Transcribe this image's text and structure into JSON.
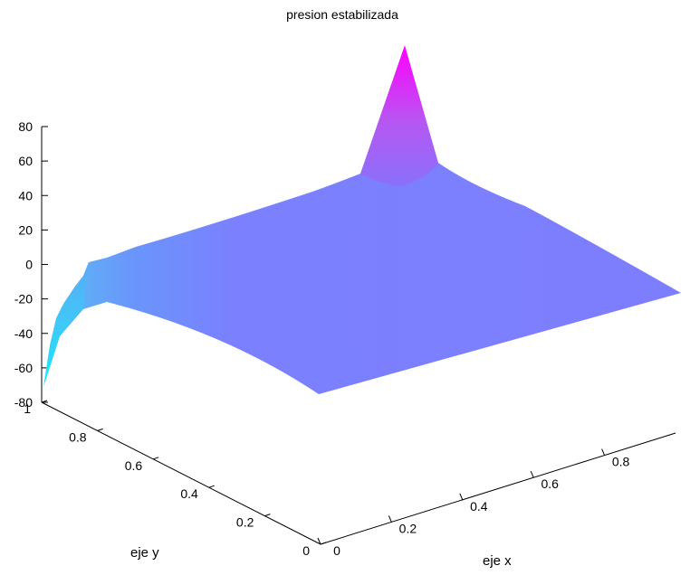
{
  "chart_data": {
    "type": "surface",
    "title": "presion estabilizada",
    "xlabel": "eje x",
    "ylabel": "eje y",
    "zlabel": "",
    "xlim": [
      0,
      1
    ],
    "ylim": [
      0,
      1
    ],
    "zlim": [
      -80,
      80
    ],
    "x_ticks": [
      0,
      0.2,
      0.4,
      0.6,
      0.8
    ],
    "x_tick_labels": [
      "0",
      "0.2",
      "0.4",
      "0.6",
      "0.8"
    ],
    "y_ticks": [
      0,
      0.2,
      0.4,
      0.6,
      0.8,
      1
    ],
    "y_tick_labels": [
      "0",
      "0.2",
      "0.4",
      "0.6",
      "0.8",
      "1"
    ],
    "z_ticks": [
      -80,
      -60,
      -40,
      -20,
      0,
      20,
      40,
      60,
      80
    ],
    "z_tick_labels": [
      "-80",
      "-60",
      "-40",
      "-20",
      "0",
      "20",
      "40",
      "60",
      "80"
    ],
    "grid": false,
    "colormap": "cool",
    "surface_samples": [
      {
        "x": 0,
        "y": 0,
        "z": -5
      },
      {
        "x": 1,
        "y": 0,
        "z": -5
      },
      {
        "x": 1,
        "y": 1,
        "z": 65
      },
      {
        "x": 0.95,
        "y": 1,
        "z": 28
      },
      {
        "x": 1,
        "y": 0.95,
        "z": 30
      },
      {
        "x": 0,
        "y": 1,
        "z": -75
      },
      {
        "x": 0.05,
        "y": 1,
        "z": -50
      },
      {
        "x": 0.1,
        "y": 1,
        "z": -30
      },
      {
        "x": 0.15,
        "y": 1,
        "z": -5
      },
      {
        "x": 0,
        "y": 0.95,
        "z": -22
      },
      {
        "x": 0,
        "y": 0.9,
        "z": -15
      }
    ]
  }
}
